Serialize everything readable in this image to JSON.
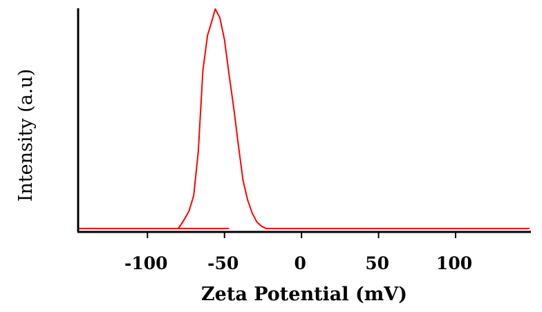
{
  "chart_data": {
    "type": "line",
    "xlabel": "Zeta Potential (mV)",
    "ylabel": "Intensity (a.u)",
    "xlim": [
      -145,
      148
    ],
    "ylim": [
      0,
      1
    ],
    "grid": false,
    "legend": "none",
    "color": "#ff0000",
    "x_ticks": [
      -100,
      -50,
      0,
      50,
      100
    ],
    "x_tick_labels": [
      "-100",
      "-50",
      "0",
      "50",
      "100"
    ],
    "series": [
      {
        "x": [
          -145,
          -80,
          -77,
          -73,
          -70,
          -67,
          -64,
          -61,
          -58,
          -56,
          -53,
          -50,
          -47,
          -44,
          -41,
          -38,
          -35,
          -32,
          -29,
          -26,
          -23,
          -22,
          148
        ],
        "y": [
          0,
          0,
          0.03,
          0.08,
          0.15,
          0.35,
          0.72,
          0.88,
          0.95,
          1.0,
          0.96,
          0.86,
          0.7,
          0.55,
          0.38,
          0.22,
          0.13,
          0.07,
          0.03,
          0.01,
          0,
          0,
          0
        ]
      },
      {
        "x": [
          -145,
          -47
        ],
        "y": [
          0,
          0
        ]
      }
    ]
  }
}
